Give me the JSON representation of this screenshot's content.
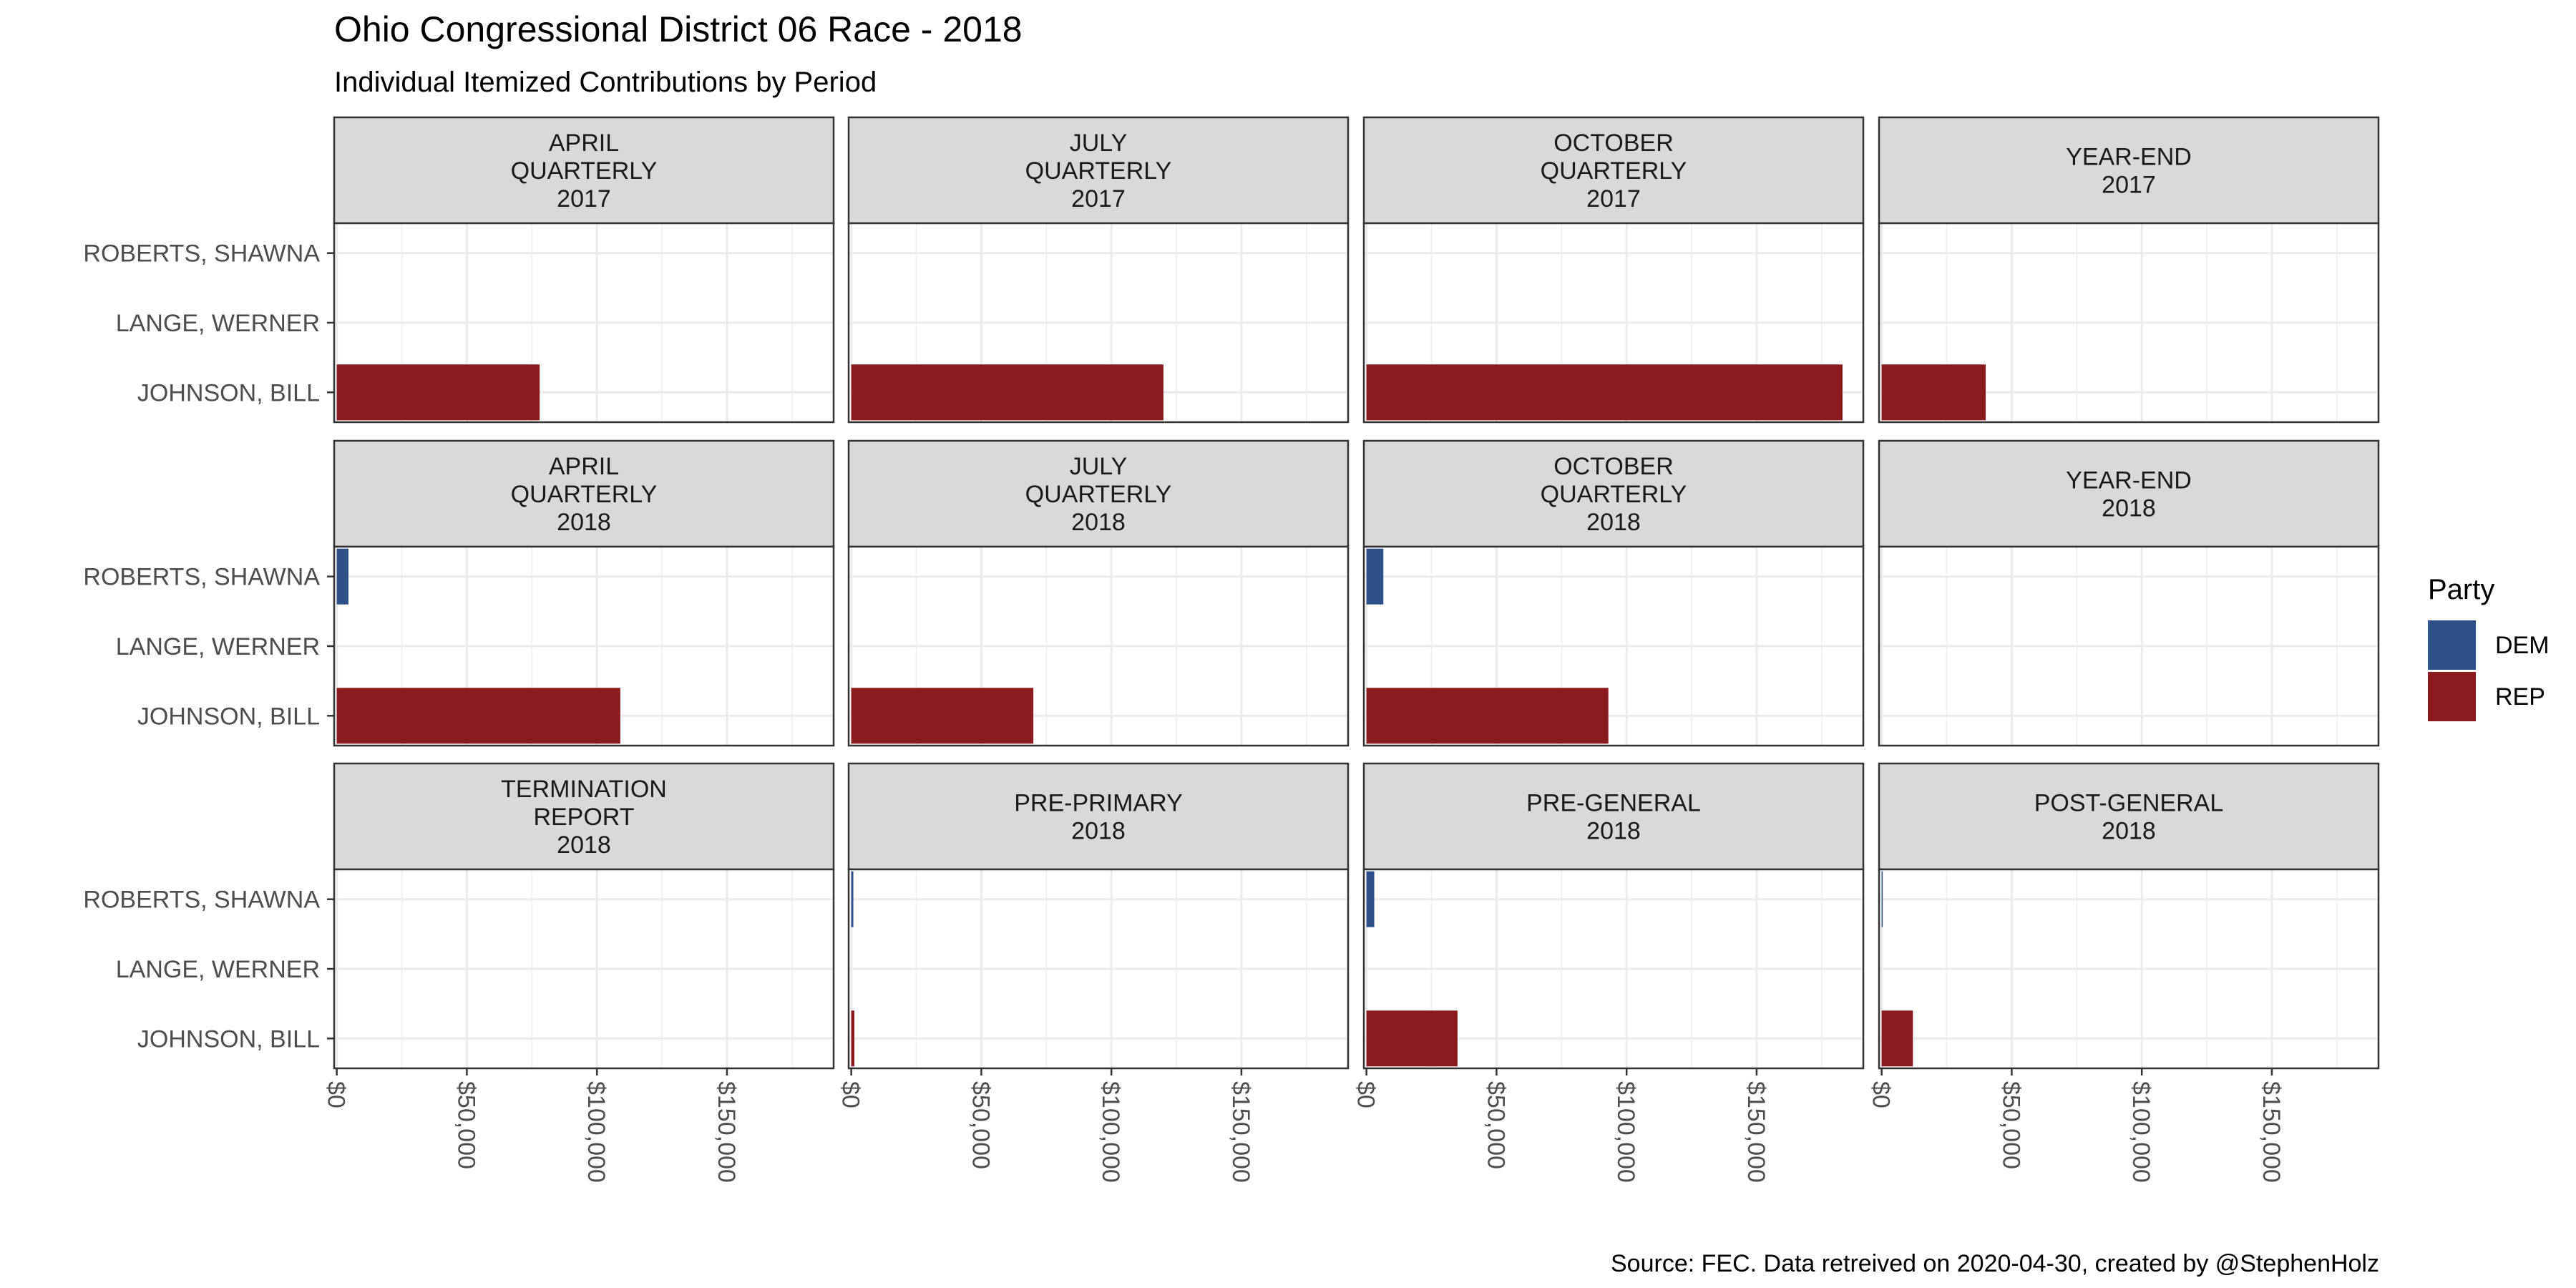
{
  "chart_data": {
    "type": "bar",
    "orientation": "horizontal",
    "title": "Ohio Congressional District 06 Race - 2018",
    "subtitle": "Individual Itemized Contributions by Period",
    "caption": "Source: FEC. Data retreived on 2020-04-30, created by @StephenHolz",
    "categories": [
      "ROBERTS, SHAWNA",
      "LANGE, WERNER",
      "JOHNSON, BILL"
    ],
    "xlim": [
      -1000,
      191000
    ],
    "x_ticks": [
      0,
      50000,
      100000,
      150000
    ],
    "x_tick_labels": [
      "$0",
      "$50,000",
      "$100,000",
      "$150,000"
    ],
    "grid": true,
    "facet_layout": {
      "rows": 3,
      "cols": 4
    },
    "legend": {
      "title": "Party",
      "position": "right",
      "items": [
        {
          "label": "DEM",
          "color": "#2D5088"
        },
        {
          "label": "REP",
          "color": "#8B1A1F"
        }
      ]
    },
    "candidate_party": {
      "ROBERTS, SHAWNA": "DEM",
      "LANGE, WERNER": "DEM",
      "JOHNSON, BILL": "REP"
    },
    "panels": [
      {
        "label": [
          "APRIL",
          "QUARTERLY",
          "2017"
        ],
        "values": [
          0,
          0,
          78000
        ]
      },
      {
        "label": [
          "JULY",
          "QUARTERLY",
          "2017"
        ],
        "values": [
          0,
          0,
          120000
        ]
      },
      {
        "label": [
          "OCTOBER",
          "QUARTERLY",
          "2017"
        ],
        "values": [
          0,
          0,
          183000
        ]
      },
      {
        "label": [
          "YEAR-END",
          "2017"
        ],
        "values": [
          0,
          0,
          40000
        ]
      },
      {
        "label": [
          "APRIL",
          "QUARTERLY",
          "2018"
        ],
        "values": [
          4500,
          0,
          109000
        ]
      },
      {
        "label": [
          "JULY",
          "QUARTERLY",
          "2018"
        ],
        "values": [
          0,
          0,
          70000
        ]
      },
      {
        "label": [
          "OCTOBER",
          "QUARTERLY",
          "2018"
        ],
        "values": [
          6500,
          0,
          93000
        ]
      },
      {
        "label": [
          "YEAR-END",
          "2018"
        ],
        "values": [
          0,
          0,
          0
        ]
      },
      {
        "label": [
          "TERMINATION",
          "REPORT",
          "2018"
        ],
        "values": [
          0,
          0,
          0
        ]
      },
      {
        "label": [
          "PRE-PRIMARY",
          "2018"
        ],
        "values": [
          800,
          0,
          1200
        ]
      },
      {
        "label": [
          "PRE-GENERAL",
          "2018"
        ],
        "values": [
          3000,
          0,
          35000
        ]
      },
      {
        "label": [
          "POST-GENERAL",
          "2018"
        ],
        "values": [
          400,
          0,
          12000
        ]
      }
    ]
  }
}
